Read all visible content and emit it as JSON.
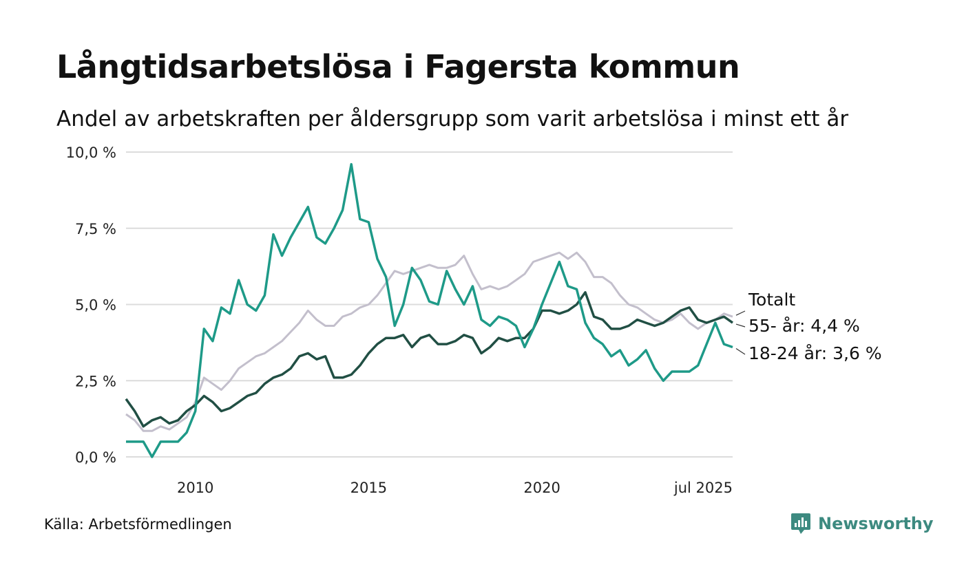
{
  "title": "Långtidsarbetslösa i Fagersta kommun",
  "subtitle": "Andel av arbetskraften per åldersgrupp som varit arbetslösa i minst ett år",
  "source": "Källa: Arbetsförmedlingen",
  "brand": "Newsworthy",
  "colors": {
    "totalt": "#c3bfcc",
    "55plus": "#214f44",
    "18_24": "#1e9a88",
    "grid": "#dcdcdc",
    "brand": "#3d8a80"
  },
  "chart_data": {
    "type": "line",
    "title": "Långtidsarbetslösa i Fagersta kommun",
    "subtitle": "Andel av arbetskraften per åldersgrupp som varit arbetslösa i minst ett år",
    "ylim": [
      0,
      10
    ],
    "y_ticks": [
      0,
      2.5,
      5,
      7.5,
      10
    ],
    "y_tick_labels": [
      "0,0 %",
      "2,5 %",
      "5,0 %",
      "7,5 %",
      "10,0 %"
    ],
    "xlim": [
      2008.0,
      2025.5
    ],
    "x_ticks": [
      2010,
      2015,
      2020,
      2025.5
    ],
    "x_tick_labels": [
      "2010",
      "2015",
      "2020",
      "jul 2025"
    ],
    "grid": true,
    "legend": "direct labels at right end of lines",
    "series": [
      {
        "name": "Totalt",
        "label": "Totalt",
        "key": "totalt",
        "x": [
          2008.0,
          2008.25,
          2008.5,
          2008.75,
          2009.0,
          2009.25,
          2009.5,
          2009.75,
          2010.0,
          2010.25,
          2010.5,
          2010.75,
          2011.0,
          2011.25,
          2011.5,
          2011.75,
          2012.0,
          2012.25,
          2012.5,
          2012.75,
          2013.0,
          2013.25,
          2013.5,
          2013.75,
          2014.0,
          2014.25,
          2014.5,
          2014.75,
          2015.0,
          2015.25,
          2015.5,
          2015.75,
          2016.0,
          2016.25,
          2016.5,
          2016.75,
          2017.0,
          2017.25,
          2017.5,
          2017.75,
          2018.0,
          2018.25,
          2018.5,
          2018.75,
          2019.0,
          2019.25,
          2019.5,
          2019.75,
          2020.0,
          2020.25,
          2020.5,
          2020.75,
          2021.0,
          2021.25,
          2021.5,
          2021.75,
          2022.0,
          2022.25,
          2022.5,
          2022.75,
          2023.0,
          2023.25,
          2023.5,
          2023.75,
          2024.0,
          2024.25,
          2024.5,
          2024.75,
          2025.0,
          2025.25,
          2025.5
        ],
        "values": [
          1.4,
          1.2,
          0.85,
          0.85,
          1.0,
          0.9,
          1.1,
          1.3,
          1.8,
          2.6,
          2.4,
          2.2,
          2.5,
          2.9,
          3.1,
          3.3,
          3.4,
          3.6,
          3.8,
          4.1,
          4.4,
          4.8,
          4.5,
          4.3,
          4.3,
          4.6,
          4.7,
          4.9,
          5.0,
          5.3,
          5.7,
          6.1,
          6.0,
          6.1,
          6.2,
          6.3,
          6.2,
          6.2,
          6.3,
          6.6,
          6.0,
          5.5,
          5.6,
          5.5,
          5.6,
          5.8,
          6.0,
          6.4,
          6.5,
          6.6,
          6.7,
          6.5,
          6.7,
          6.4,
          5.9,
          5.9,
          5.7,
          5.3,
          5.0,
          4.9,
          4.7,
          4.5,
          4.4,
          4.5,
          4.7,
          4.4,
          4.2,
          4.4,
          4.5,
          4.7,
          4.6
        ]
      },
      {
        "name": "55- år",
        "label": "55- år: 4,4 %",
        "key": "55plus",
        "x": [
          2008.0,
          2008.25,
          2008.5,
          2008.75,
          2009.0,
          2009.25,
          2009.5,
          2009.75,
          2010.0,
          2010.25,
          2010.5,
          2010.75,
          2011.0,
          2011.25,
          2011.5,
          2011.75,
          2012.0,
          2012.25,
          2012.5,
          2012.75,
          2013.0,
          2013.25,
          2013.5,
          2013.75,
          2014.0,
          2014.25,
          2014.5,
          2014.75,
          2015.0,
          2015.25,
          2015.5,
          2015.75,
          2016.0,
          2016.25,
          2016.5,
          2016.75,
          2017.0,
          2017.25,
          2017.5,
          2017.75,
          2018.0,
          2018.25,
          2018.5,
          2018.75,
          2019.0,
          2019.25,
          2019.5,
          2019.75,
          2020.0,
          2020.25,
          2020.5,
          2020.75,
          2021.0,
          2021.25,
          2021.5,
          2021.75,
          2022.0,
          2022.25,
          2022.5,
          2022.75,
          2023.0,
          2023.25,
          2023.5,
          2023.75,
          2024.0,
          2024.25,
          2024.5,
          2024.75,
          2025.0,
          2025.25,
          2025.5
        ],
        "values": [
          1.9,
          1.5,
          1.0,
          1.2,
          1.3,
          1.1,
          1.2,
          1.5,
          1.7,
          2.0,
          1.8,
          1.5,
          1.6,
          1.8,
          2.0,
          2.1,
          2.4,
          2.6,
          2.7,
          2.9,
          3.3,
          3.4,
          3.2,
          3.3,
          2.6,
          2.6,
          2.7,
          3.0,
          3.4,
          3.7,
          3.9,
          3.9,
          4.0,
          3.6,
          3.9,
          4.0,
          3.7,
          3.7,
          3.8,
          4.0,
          3.9,
          3.4,
          3.6,
          3.9,
          3.8,
          3.9,
          3.9,
          4.2,
          4.8,
          4.8,
          4.7,
          4.8,
          5.0,
          5.4,
          4.6,
          4.5,
          4.2,
          4.2,
          4.3,
          4.5,
          4.4,
          4.3,
          4.4,
          4.6,
          4.8,
          4.9,
          4.5,
          4.4,
          4.5,
          4.6,
          4.4
        ]
      },
      {
        "name": "18-24 år",
        "label": "18-24 år: 3,6 %",
        "key": "18_24",
        "x": [
          2008.0,
          2008.25,
          2008.5,
          2008.75,
          2009.0,
          2009.25,
          2009.5,
          2009.75,
          2010.0,
          2010.25,
          2010.5,
          2010.75,
          2011.0,
          2011.25,
          2011.5,
          2011.75,
          2012.0,
          2012.25,
          2012.5,
          2012.75,
          2013.0,
          2013.25,
          2013.5,
          2013.75,
          2014.0,
          2014.25,
          2014.5,
          2014.75,
          2015.0,
          2015.25,
          2015.5,
          2015.75,
          2016.0,
          2016.25,
          2016.5,
          2016.75,
          2017.0,
          2017.25,
          2017.5,
          2017.75,
          2018.0,
          2018.25,
          2018.5,
          2018.75,
          2019.0,
          2019.25,
          2019.5,
          2019.75,
          2020.0,
          2020.25,
          2020.5,
          2020.75,
          2021.0,
          2021.25,
          2021.5,
          2021.75,
          2022.0,
          2022.25,
          2022.5,
          2022.75,
          2023.0,
          2023.25,
          2023.5,
          2023.75,
          2024.0,
          2024.25,
          2024.5,
          2024.75,
          2025.0,
          2025.25,
          2025.5
        ],
        "values": [
          0.5,
          0.5,
          0.5,
          0.0,
          0.5,
          0.5,
          0.5,
          0.8,
          1.5,
          4.2,
          3.8,
          4.9,
          4.7,
          5.8,
          5.0,
          4.8,
          5.3,
          7.3,
          6.6,
          7.2,
          7.7,
          8.2,
          7.2,
          7.0,
          7.5,
          8.1,
          9.6,
          7.8,
          7.7,
          6.5,
          5.9,
          4.3,
          5.0,
          6.2,
          5.8,
          5.1,
          5.0,
          6.1,
          5.5,
          5.0,
          5.6,
          4.5,
          4.3,
          4.6,
          4.5,
          4.3,
          3.6,
          4.2,
          5.0,
          5.7,
          6.4,
          5.6,
          5.5,
          4.4,
          3.9,
          3.7,
          3.3,
          3.5,
          3.0,
          3.2,
          3.5,
          2.9,
          2.5,
          2.8,
          2.8,
          2.8,
          3.0,
          3.7,
          4.4,
          3.7,
          3.6
        ]
      }
    ]
  }
}
